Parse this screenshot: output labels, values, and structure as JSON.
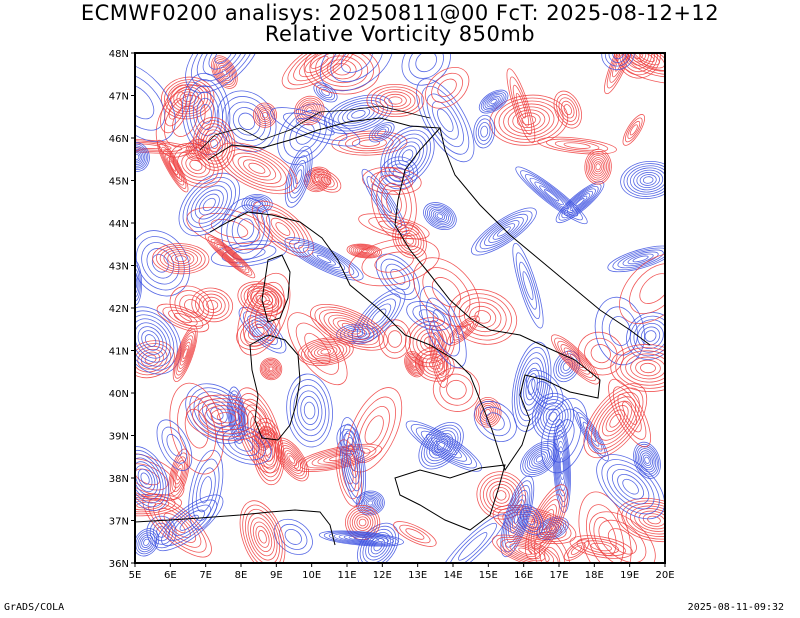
{
  "title": {
    "line1": "ECMWF0200 analisys: 20250811@00 FcT: 2025-08-12+12",
    "line2": "Relative Vorticity 850mb"
  },
  "map": {
    "lon_range": [
      5,
      20
    ],
    "lat_range": [
      36,
      48
    ],
    "lon_ticks": [
      "5E",
      "6E",
      "7E",
      "8E",
      "9E",
      "10E",
      "11E",
      "12E",
      "13E",
      "14E",
      "15E",
      "16E",
      "17E",
      "18E",
      "19E",
      "20E"
    ],
    "lat_ticks": [
      "36N",
      "37N",
      "38N",
      "39N",
      "40N",
      "41N",
      "42N",
      "43N",
      "44N",
      "45N",
      "46N",
      "47N",
      "48N"
    ],
    "colors": {
      "positive_contour": "#ef3b3b",
      "negative_contour": "#3a4fe0",
      "coastline": "#000000",
      "frame": "#000000"
    }
  },
  "footer": {
    "left": "GrADS/COLA",
    "right": "2025-08-11-09:32"
  }
}
